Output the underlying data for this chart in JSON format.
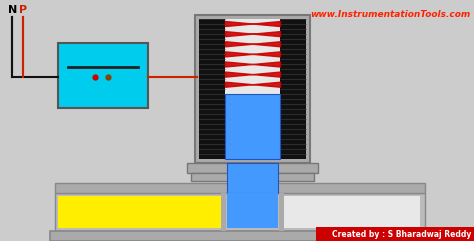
{
  "bg_color": "#cccccc",
  "title_text": "www.InstrumentationTools.com",
  "title_color": "#ff2200",
  "credit_text": "Created by : S Bharadwaj Reddy",
  "credit_bg": "#cc0000",
  "N_label": "N",
  "P_label": "P",
  "coil_color": "#00ccee",
  "coil_outline": "#555555",
  "sol_body_color": "#aaaaaa",
  "winding_color": "#111111",
  "spring_color": "#cc0000",
  "plunger_color": "#4499ff",
  "fluid_color": "#ffee00",
  "valve_color": "#bbbbbb",
  "wire_red": "#cc2200",
  "wire_black": "#111111",
  "white_bg": "#f0f0f0"
}
